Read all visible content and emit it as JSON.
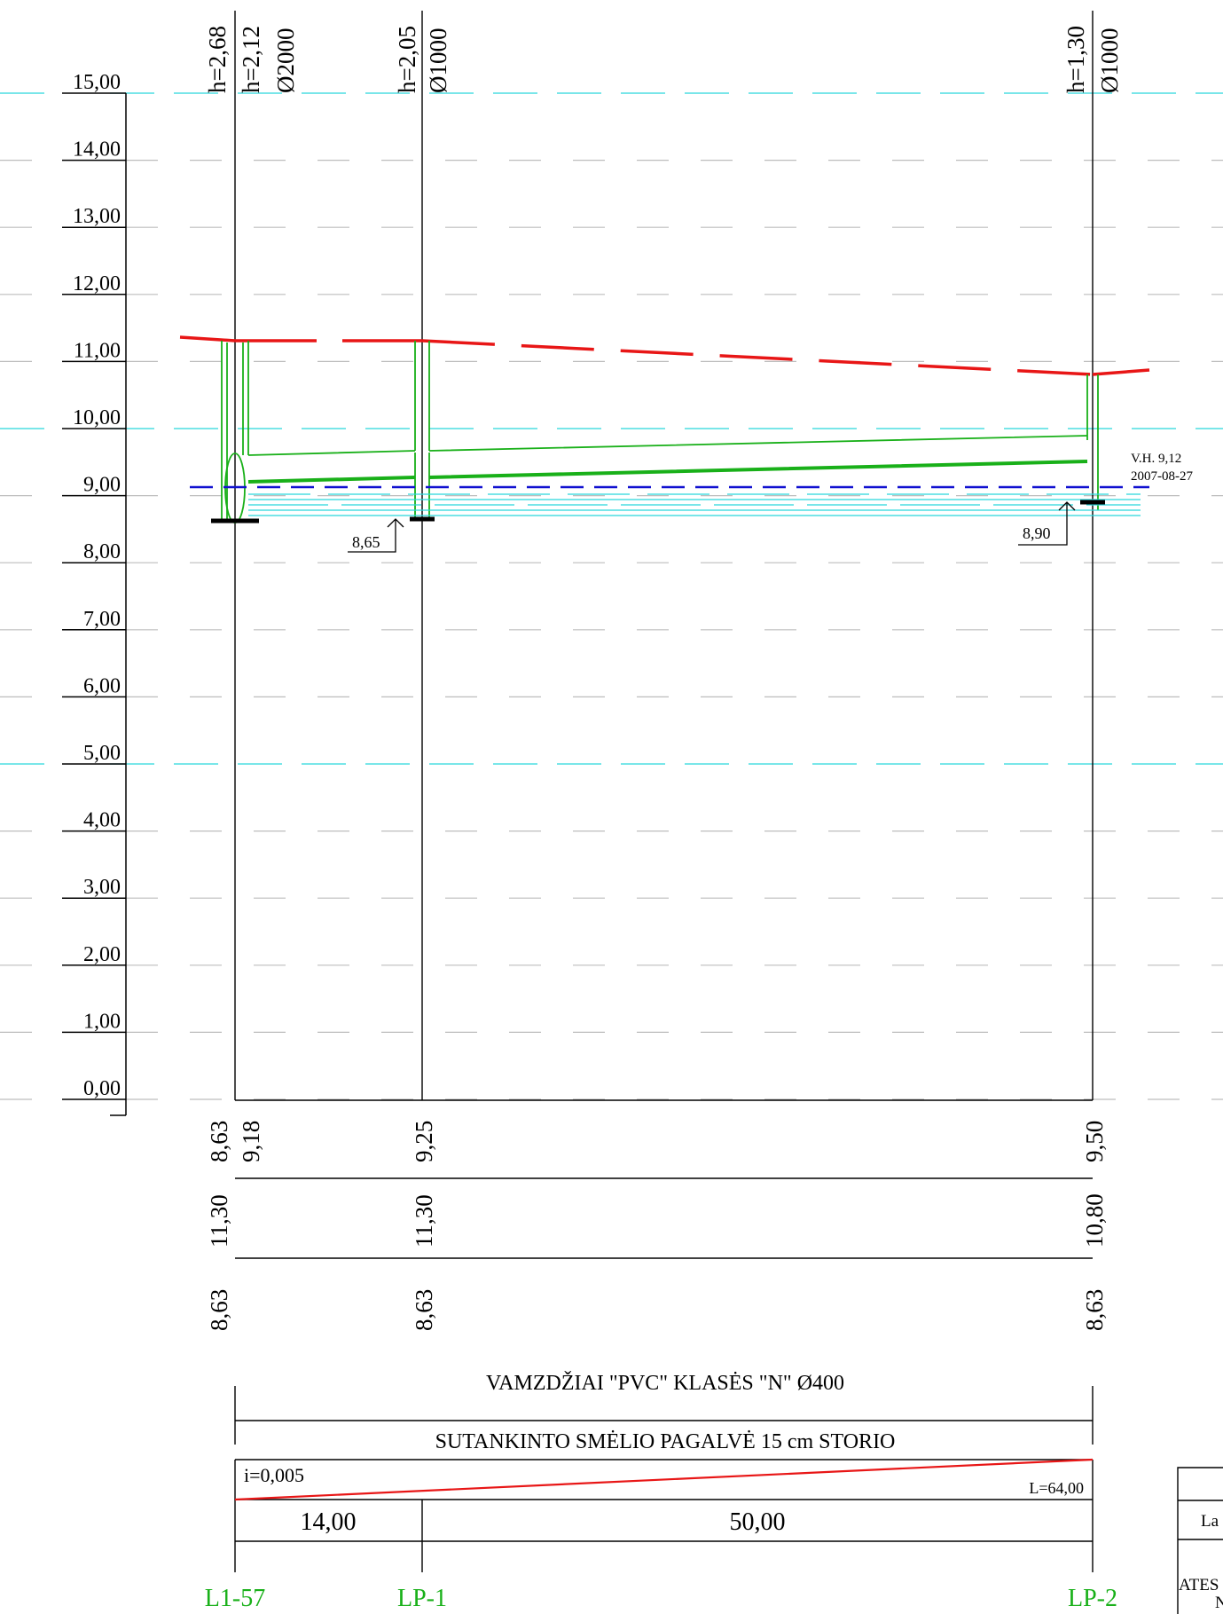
{
  "scale": {
    "labels": [
      "15,00",
      "14,00",
      "13,00",
      "12,00",
      "11,00",
      "10,00",
      "9,00",
      "8,00",
      "7,00",
      "6,00",
      "5,00",
      "4,00",
      "3,00",
      "2,00",
      "1,00",
      "0,00"
    ]
  },
  "wells": [
    {
      "id": "L1-57",
      "h_outer": "h=2,68",
      "h_inner": "h=2,12",
      "diameter": "Ø2000",
      "invert": "8,63",
      "pipe_top": "9,18",
      "ground": "11,30",
      "design": "8,63"
    },
    {
      "id": "LP-1",
      "h_outer": "h=2,05",
      "diameter": "Ø1000",
      "pipe_top": "9,25",
      "ground": "11,30",
      "design": "8,63",
      "callout": "8,65"
    },
    {
      "id": "LP-2",
      "h_outer": "h=1,30",
      "diameter": "Ø1000",
      "pipe_top": "9,50",
      "ground": "10,80",
      "design": "8,63",
      "callout": "8,90"
    }
  ],
  "water_level": {
    "label": "V.H. 9,12",
    "date": "2007-08-27"
  },
  "pipe_spec": "VAMZDŽIAI \"PVC\" KLASĖS \"N\" Ø400",
  "bedding_spec": "SUTANKINTO SMĖLIO PAGALVĖ 15 cm STORIO",
  "slope": {
    "label": "i=0,005",
    "length": "L=64,00"
  },
  "distances": [
    "14,00",
    "50,00"
  ],
  "title_block": {
    "row1": "La",
    "row2": "ATES",
    "row3": "N"
  },
  "colors": {
    "ground_line": "#e81616",
    "pipe": "#19b019",
    "water": "#1010d0",
    "grid_cyan": "#29d6dc",
    "grid_gray": "#bdbdbd"
  }
}
